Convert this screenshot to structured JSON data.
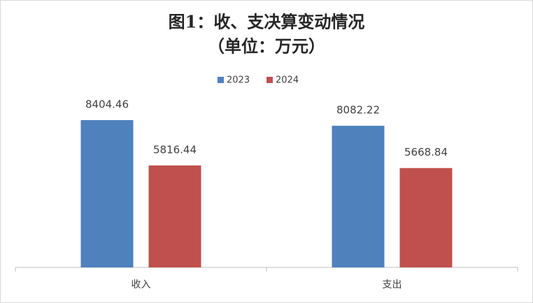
{
  "chart_data": {
    "type": "bar",
    "title": "图1：收、支决算变动情况",
    "subtitle": "（单位：万元）",
    "categories": [
      "收入",
      "支出"
    ],
    "series": [
      {
        "name": "2023",
        "color": "#4f81bd",
        "values": [
          8404.46,
          8082.22
        ]
      },
      {
        "name": "2024",
        "color": "#c0504d",
        "values": [
          5816.44,
          5668.84
        ]
      }
    ],
    "ylim": [
      0,
      10000
    ],
    "legend": "top"
  }
}
